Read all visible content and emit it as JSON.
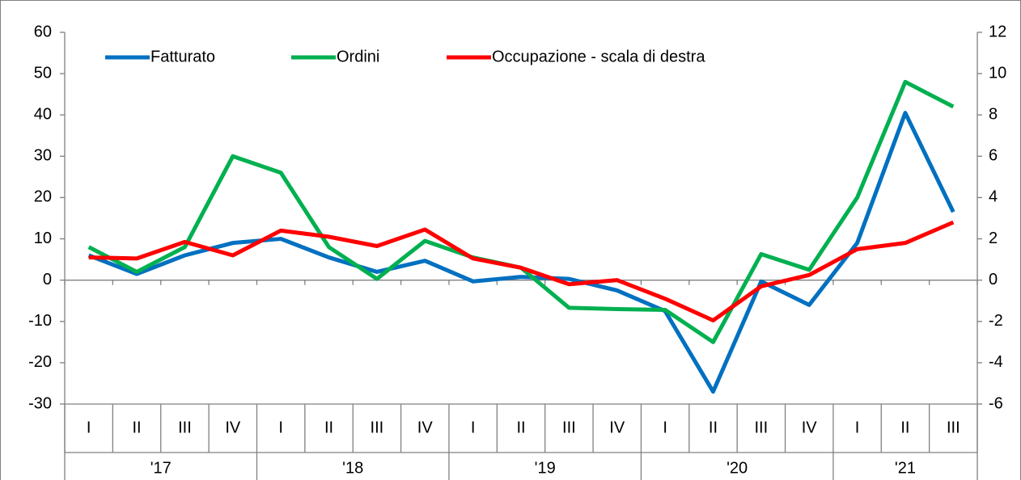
{
  "chart_data": {
    "type": "line",
    "categories": [
      "I",
      "II",
      "III",
      "IV",
      "I",
      "II",
      "III",
      "IV",
      "I",
      "II",
      "III",
      "IV",
      "I",
      "II",
      "III",
      "IV",
      "I",
      "II",
      "III"
    ],
    "groups": [
      {
        "label": "'17",
        "span": 4
      },
      {
        "label": "'18",
        "span": 4
      },
      {
        "label": "'19",
        "span": 4
      },
      {
        "label": "'20",
        "span": 4
      },
      {
        "label": "'21",
        "span": 3
      }
    ],
    "series": [
      {
        "name": "Fatturato",
        "color": "#0070c0",
        "values": [
          6,
          1.5,
          6,
          9,
          10,
          5.5,
          2,
          4.7,
          -0.3,
          0.8,
          0.3,
          -2.5,
          -7.5,
          -27,
          -0.3,
          -6,
          9,
          40.5,
          16.5
        ]
      },
      {
        "name": "Ordini",
        "color": "#00b050",
        "values": [
          8,
          2,
          8,
          30,
          26,
          8,
          0.3,
          9.5,
          5.5,
          3,
          -6.7,
          -7,
          -7.2,
          -15,
          6.3,
          2.5,
          20,
          48,
          42
        ]
      },
      {
        "name": "Occupazione - scala di destra",
        "color": "#ff0000",
        "axis": "y2",
        "values": [
          1.1,
          1.05,
          1.85,
          1.2,
          2.4,
          2.1,
          1.65,
          2.45,
          1.05,
          0.6,
          -0.2,
          0,
          -0.9,
          -1.95,
          -0.3,
          0.25,
          1.5,
          1.8,
          2.8
        ]
      }
    ],
    "ylim": [
      -30,
      60
    ],
    "yticks": [
      -30,
      -20,
      -10,
      0,
      10,
      20,
      30,
      40,
      50,
      60
    ],
    "y2lim": [
      -6,
      12
    ],
    "y2ticks": [
      -6,
      -4,
      -2,
      0,
      2,
      4,
      6,
      8,
      10,
      12
    ],
    "legend": "top-left"
  }
}
